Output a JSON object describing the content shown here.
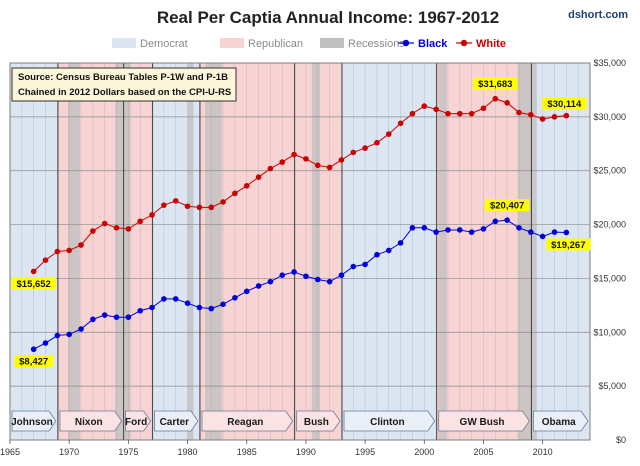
{
  "chart_data": {
    "type": "line",
    "title": "Real Per Captia Annual Income: 1967-2012",
    "credit": "dshort.com",
    "source_lines": [
      "Source: Census Bureau Tables P-1W and P-1B",
      "Chained in 2012 Dollars based on the CPI-U-RS"
    ],
    "xlim": [
      1965,
      2014
    ],
    "ylim": [
      0,
      35000
    ],
    "x_ticks": [
      1965,
      1970,
      1975,
      1980,
      1985,
      1990,
      1995,
      2000,
      2005,
      2010
    ],
    "y_ticks": [
      0,
      5000,
      10000,
      15000,
      20000,
      25000,
      30000,
      35000
    ],
    "y_tick_labels": [
      "$0",
      "$5,000",
      "$10,000",
      "$15,000",
      "$20,000",
      "$25,000",
      "$30,000",
      "$35,000"
    ],
    "grid": true,
    "legend_position": "top",
    "legend": [
      {
        "label": "Democrat",
        "kind": "box",
        "color": "#dce6f2"
      },
      {
        "label": "Republican",
        "kind": "box",
        "color": "#f7d3d3"
      },
      {
        "label": "Recessions",
        "kind": "box",
        "color": "#bfbfbf"
      },
      {
        "label": "Black",
        "kind": "line",
        "color": "#0000dd"
      },
      {
        "label": "White",
        "kind": "line",
        "color": "#cc0000"
      }
    ],
    "x": [
      1967,
      1968,
      1969,
      1970,
      1971,
      1972,
      1973,
      1974,
      1975,
      1976,
      1977,
      1978,
      1979,
      1980,
      1981,
      1982,
      1983,
      1984,
      1985,
      1986,
      1987,
      1988,
      1989,
      1990,
      1991,
      1992,
      1993,
      1994,
      1995,
      1996,
      1997,
      1998,
      1999,
      2000,
      2001,
      2002,
      2003,
      2004,
      2005,
      2006,
      2007,
      2008,
      2009,
      2010,
      2011,
      2012
    ],
    "series": [
      {
        "name": "Black",
        "color": "#0000dd",
        "values": [
          8427,
          9000,
          9700,
          9800,
          10300,
          11200,
          11600,
          11400,
          11400,
          12000,
          12300,
          13100,
          13100,
          12700,
          12300,
          12200,
          12600,
          13200,
          13800,
          14300,
          14700,
          15300,
          15600,
          15200,
          14900,
          14700,
          15300,
          16100,
          16300,
          17200,
          17600,
          18300,
          19700,
          19700,
          19300,
          19500,
          19500,
          19300,
          19600,
          20300,
          20407,
          19700,
          19300,
          18900,
          19300,
          19267
        ]
      },
      {
        "name": "White",
        "color": "#cc0000",
        "values": [
          15652,
          16700,
          17500,
          17600,
          18100,
          19400,
          20100,
          19700,
          19600,
          20300,
          20900,
          21800,
          22200,
          21700,
          21600,
          21600,
          22100,
          22900,
          23600,
          24400,
          25200,
          25800,
          26500,
          26100,
          25500,
          25300,
          26000,
          26700,
          27100,
          27600,
          28400,
          29400,
          30300,
          31000,
          30700,
          30300,
          30300,
          30300,
          30800,
          31683,
          31300,
          30400,
          30200,
          29800,
          30000,
          30114
        ]
      }
    ],
    "annotations": [
      {
        "series": "Black",
        "x": 1967,
        "value": 8427,
        "label": "$8,427"
      },
      {
        "series": "White",
        "x": 1967,
        "value": 15652,
        "label": "$15,652"
      },
      {
        "series": "White",
        "x": 2006,
        "value": 31683,
        "label": "$31,683"
      },
      {
        "series": "White",
        "x": 2012,
        "value": 30114,
        "label": "$30,114"
      },
      {
        "series": "Black",
        "x": 2007,
        "value": 20407,
        "label": "$20,407"
      },
      {
        "series": "Black",
        "x": 2012,
        "value": 19267,
        "label": "$19,267"
      }
    ],
    "annotation_color": "#ffff00",
    "administrations": [
      {
        "name": "Johnson",
        "party": "Democrat",
        "start": 1963.9,
        "end": 1969.05
      },
      {
        "name": "Nixon",
        "party": "Republican",
        "start": 1969.05,
        "end": 1974.6
      },
      {
        "name": "Ford",
        "party": "Republican",
        "start": 1974.6,
        "end": 1977.05
      },
      {
        "name": "Carter",
        "party": "Democrat",
        "start": 1977.05,
        "end": 1981.05
      },
      {
        "name": "Reagan",
        "party": "Republican",
        "start": 1981.05,
        "end": 1989.05
      },
      {
        "name": "Bush",
        "party": "Republican",
        "start": 1989.05,
        "end": 1993.05
      },
      {
        "name": "Clinton",
        "party": "Democrat",
        "start": 1993.05,
        "end": 2001.05
      },
      {
        "name": "GW Bush",
        "party": "Republican",
        "start": 2001.05,
        "end": 2009.05
      },
      {
        "name": "Obama",
        "party": "Democrat",
        "start": 2009.05,
        "end": 2014
      }
    ],
    "recessions": [
      {
        "start": 1969.9,
        "end": 1970.9
      },
      {
        "start": 1973.9,
        "end": 1975.2
      },
      {
        "start": 1980.0,
        "end": 1980.5
      },
      {
        "start": 1981.5,
        "end": 1982.9
      },
      {
        "start": 1990.5,
        "end": 1991.2
      },
      {
        "start": 2001.2,
        "end": 2001.9
      },
      {
        "start": 2007.9,
        "end": 2009.5
      }
    ]
  }
}
